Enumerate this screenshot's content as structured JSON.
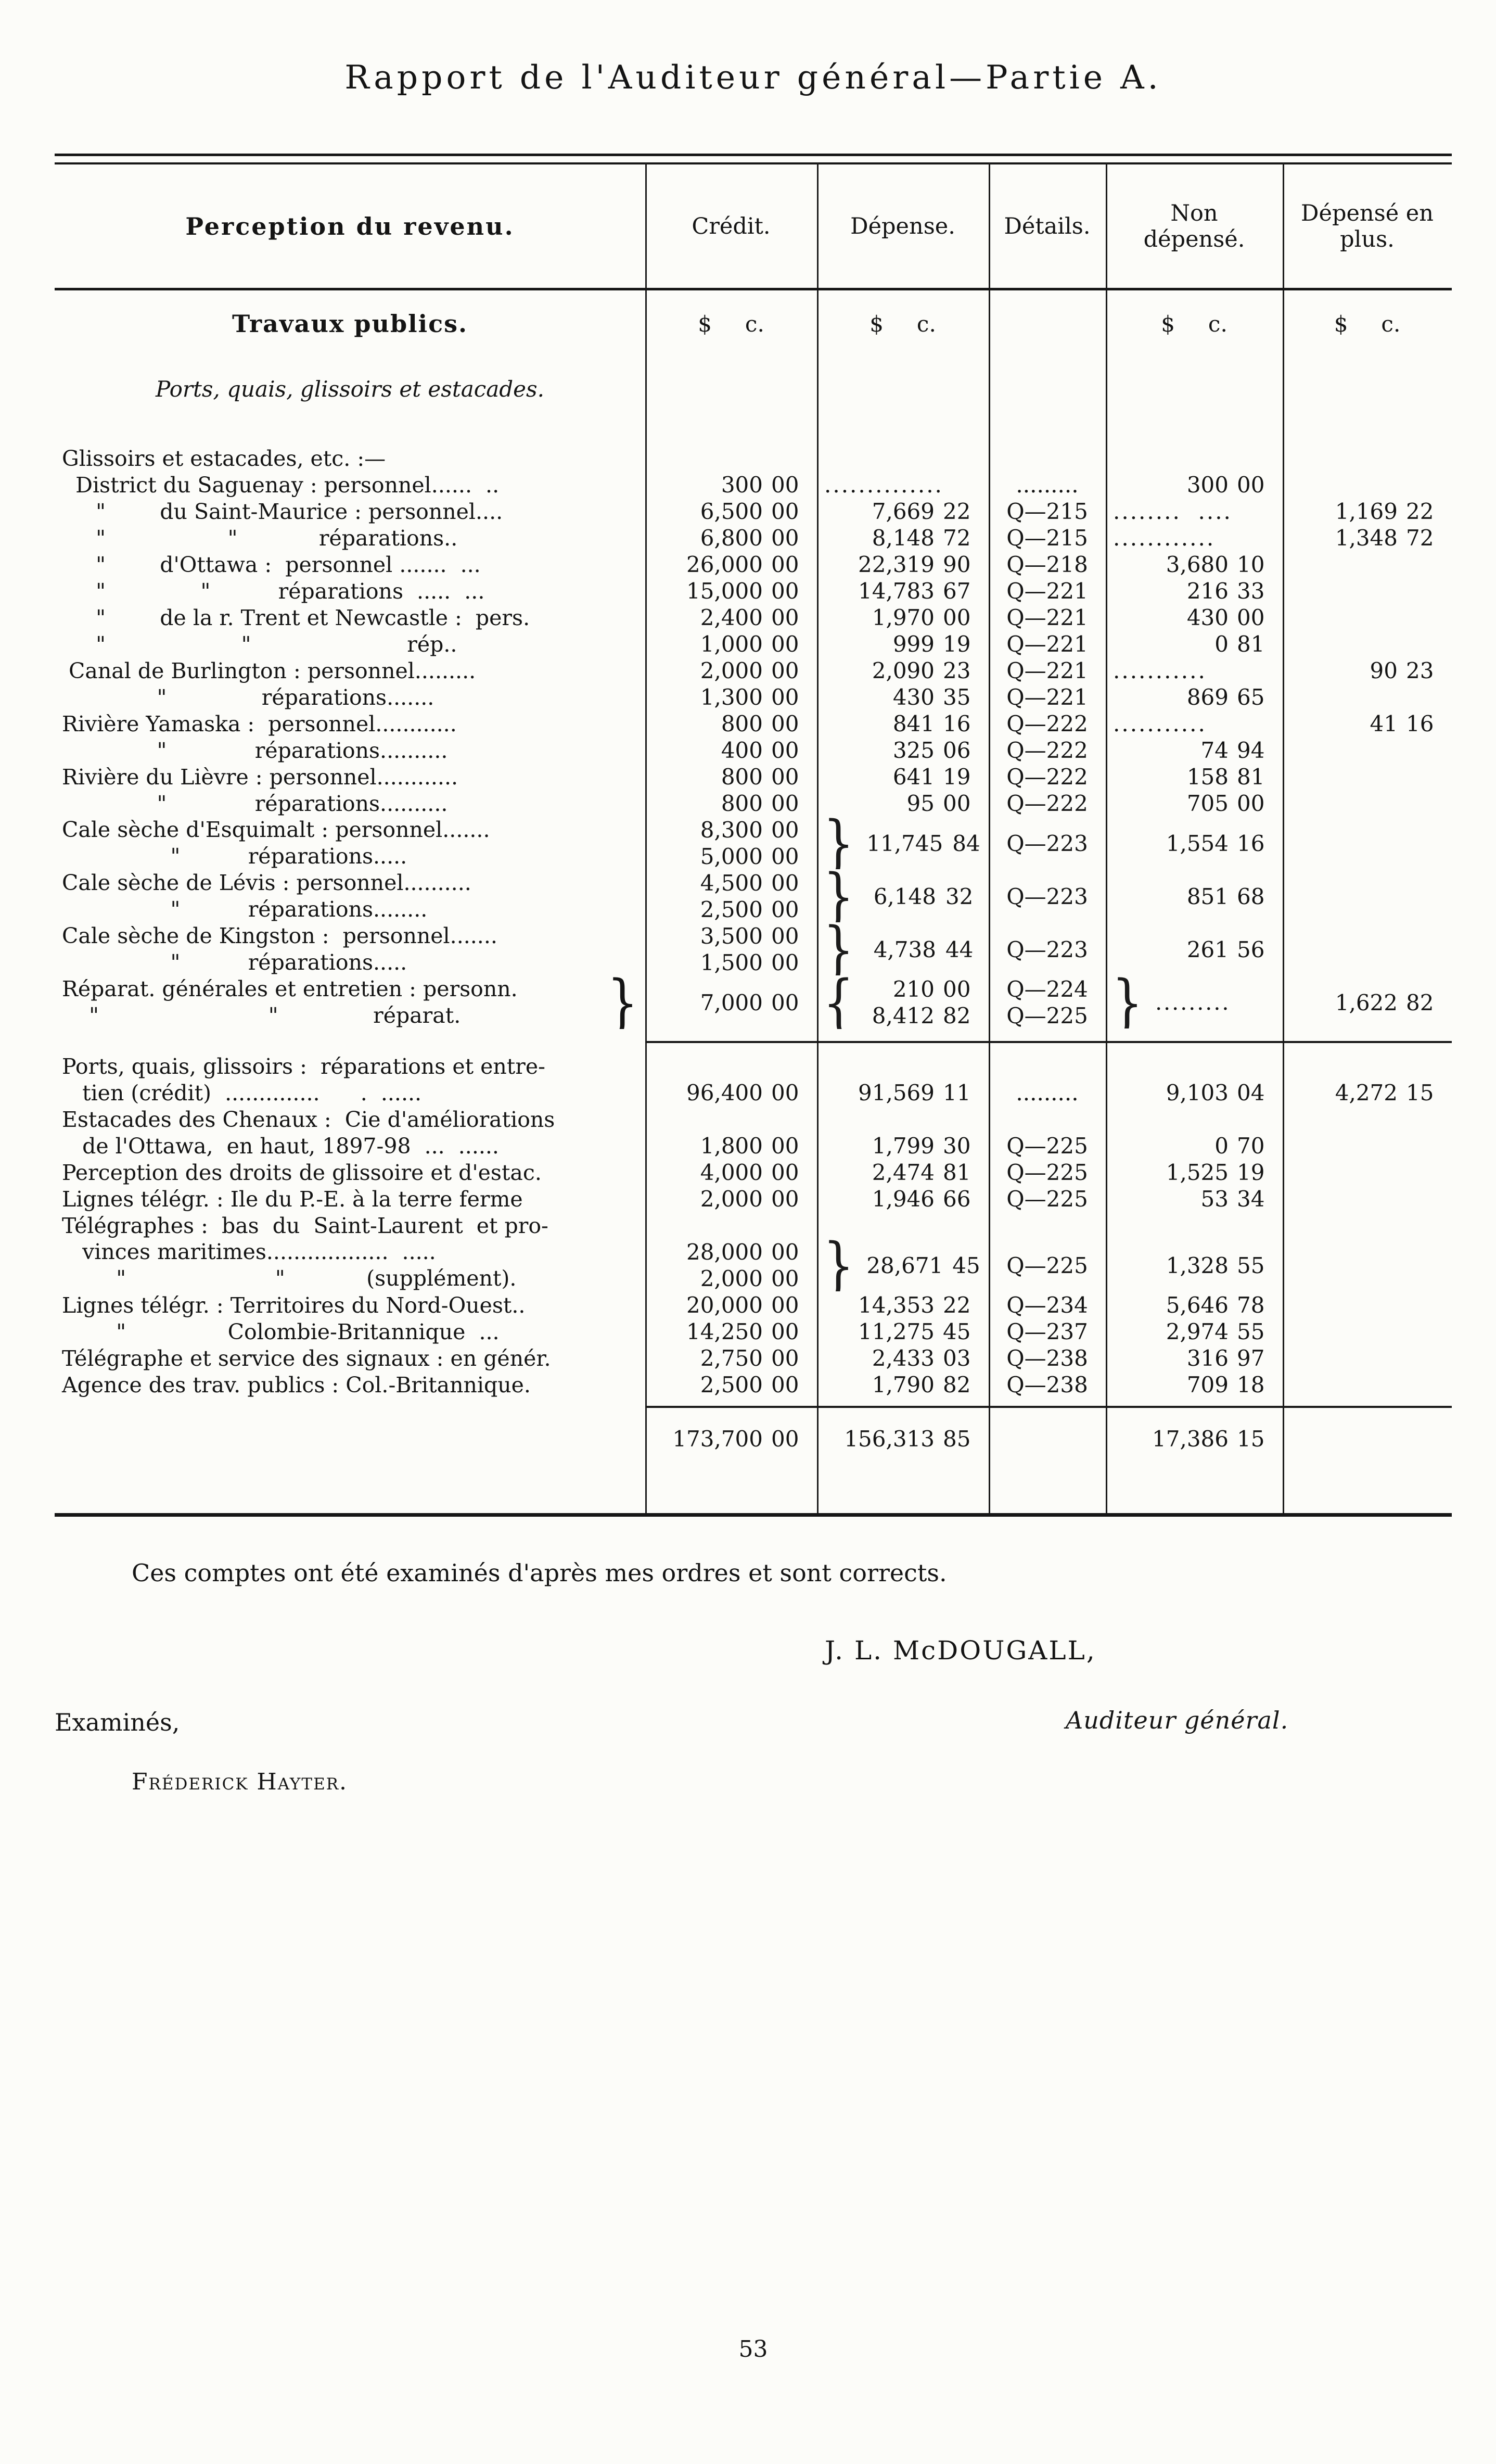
{
  "page": {
    "title": "Rapport de l'Auditeur général—Partie A.",
    "page_number": "53"
  },
  "table": {
    "columns": [
      "Perception du revenu.",
      "Crédit.",
      "Dépense.",
      "Détails.",
      "Non dépensé.",
      "Dépensé en plus."
    ],
    "section_title": "Travaux publics.",
    "subtitle": "Ports, quais, glissoirs et estacades.",
    "currency_dollar": "$",
    "currency_cents": "c.",
    "rows": [
      {
        "type": "plain",
        "label": "Glissoirs et estacades, etc. :—"
      },
      {
        "type": "plain",
        "label": "  District du Saguenay : personnel......  ..",
        "credit": "300 00",
        "depense": "..............",
        "details": ".........",
        "nd": "300 00"
      },
      {
        "type": "plain",
        "label": "     \"        du Saint-Maurice : personnel....",
        "credit": "6,500 00",
        "depense": "7,669 22",
        "details": "Q—215",
        "nd": "........  ....",
        "plus": "1,169 22"
      },
      {
        "type": "plain",
        "label": "     \"                  \"            réparations..",
        "credit": "6,800 00",
        "depense": "8,148 72",
        "details": "Q—215",
        "nd": "............",
        "plus": "1,348 72"
      },
      {
        "type": "plain",
        "label": "     \"        d'Ottawa :  personnel .......  ...",
        "credit": "26,000 00",
        "depense": "22,319 90",
        "details": "Q—218",
        "nd": "3,680 10"
      },
      {
        "type": "plain",
        "label": "     \"              \"          réparations  .....  ...",
        "credit": "15,000 00",
        "depense": "14,783 67",
        "details": "Q—221",
        "nd": "216 33"
      },
      {
        "type": "plain",
        "label": "     \"        de la r. Trent et Newcastle :  pers.",
        "credit": "2,400 00",
        "depense": "1,970 00",
        "details": "Q—221",
        "nd": "430 00"
      },
      {
        "type": "plain",
        "label": "     \"                    \"                       rép..",
        "credit": "1,000 00",
        "depense": "999 19",
        "details": "Q—221",
        "nd": "0 81"
      },
      {
        "type": "plain",
        "label": " Canal de Burlington : personnel.........",
        "credit": "2,000 00",
        "depense": "2,090 23",
        "details": "Q—221",
        "nd": "...........",
        "plus": "90 23"
      },
      {
        "type": "plain",
        "label": "              \"              réparations.......",
        "credit": "1,300 00",
        "depense": "430 35",
        "details": "Q—221",
        "nd": "869 65"
      },
      {
        "type": "plain",
        "label": "Rivière Yamaska :  personnel............",
        "credit": "800 00",
        "depense": "841 16",
        "details": "Q—222",
        "nd": "...........",
        "plus": "41 16"
      },
      {
        "type": "plain",
        "label": "              \"             réparations..........",
        "credit": "400 00",
        "depense": "325 06",
        "details": "Q—222",
        "nd": "74 94"
      },
      {
        "type": "plain",
        "label": "Rivière du Lièvre : personnel............",
        "credit": "800 00",
        "depense": "641 19",
        "details": "Q—222",
        "nd": "158 81"
      },
      {
        "type": "plain",
        "label": "              \"             réparations..........",
        "credit": "800 00",
        "depense": "95 00",
        "details": "Q—222",
        "nd": "705 00"
      },
      {
        "type": "pair",
        "labels": [
          "Cale sèche d'Esquimalt : personnel.......",
          "                \"          réparations....."
        ],
        "credits": [
          "8,300 00",
          "5,000 00"
        ],
        "depense": "11,745 84",
        "details": "Q—223",
        "nd": "1,554 16"
      },
      {
        "type": "pair",
        "labels": [
          "Cale sèche de Lévis : personnel..........",
          "                \"          réparations........"
        ],
        "credits": [
          "4,500 00",
          "2,500 00"
        ],
        "depense": "6,148 32",
        "details": "Q—223",
        "nd": "851 68"
      },
      {
        "type": "pair",
        "labels": [
          "Cale sèche de Kingston :  personnel.......",
          "                \"          réparations....."
        ],
        "credits": [
          "3,500 00",
          "1,500 00"
        ],
        "depense": "4,738 44",
        "details": "Q—223",
        "nd": "261 56"
      },
      {
        "type": "repgen",
        "labels": [
          "Réparat. générales et entretien : personn.",
          "    \"                         \"              réparat."
        ],
        "credit": "7,000 00",
        "depenses": [
          "210 00",
          "8,412 82"
        ],
        "details": [
          "Q—224",
          "Q—225"
        ],
        "nd": ".........",
        "plus": "1,622 82"
      },
      {
        "type": "rule"
      },
      {
        "type": "plain",
        "label": "Ports, quais, glissoirs :  réparations et entre-"
      },
      {
        "type": "plain",
        "label": "   tien (crédit)  ..............      .  ......",
        "credit": "96,400 00",
        "depense": "91,569 11",
        "details": ".........",
        "nd": "9,103 04",
        "plus": "4,272 15"
      },
      {
        "type": "plain",
        "label": "Estacades des Chenaux :  Cie d'améliorations"
      },
      {
        "type": "plain",
        "label": "   de l'Ottawa,  en haut, 1897-98  ...  ......",
        "credit": "1,800 00",
        "depense": "1,799 30",
        "details": "Q—225",
        "nd": "0 70"
      },
      {
        "type": "plain",
        "label": "Perception des droits de glissoire et d'estac.",
        "credit": "4,000 00",
        "depense": "2,474 81",
        "details": "Q—225",
        "nd": "1,525 19"
      },
      {
        "type": "plain",
        "label": "Lignes télégr. : Ile du P.-E. à la terre ferme",
        "credit": "2,000 00",
        "depense": "1,946 66",
        "details": "Q—225",
        "nd": "53 34"
      },
      {
        "type": "plain",
        "label": "Télégraphes :  bas  du  Saint-Laurent  et pro-"
      },
      {
        "type": "pair",
        "labels": [
          "   vinces maritimes..................  .....",
          "        \"                      \"            (supplément)."
        ],
        "credits": [
          "28,000 00",
          "2,000 00"
        ],
        "depense": "28,671 45",
        "details": "Q—225",
        "nd": "1,328 55"
      },
      {
        "type": "plain",
        "label": "Lignes télégr. : Territoires du Nord-Ouest..",
        "credit": "20,000 00",
        "depense": "14,353 22",
        "details": "Q—234",
        "nd": "5,646 78"
      },
      {
        "type": "plain",
        "label": "        \"               Colombie-Britannique  ...",
        "credit": "14,250 00",
        "depense": "11,275 45",
        "details": "Q—237",
        "nd": "2,974 55"
      },
      {
        "type": "plain",
        "label": "Télégraphe et service des signaux : en génér.",
        "credit": "2,750 00",
        "depense": "2,433 03",
        "details": "Q—238",
        "nd": "316 97"
      },
      {
        "type": "plain",
        "label": "Agence des trav. publics : Col.-Britannique.",
        "credit": "2,500 00",
        "depense": "1,790 82",
        "details": "Q—238",
        "nd": "709 18"
      }
    ],
    "totals": {
      "credit": "173,700 00",
      "depense": "156,313 85",
      "non_depense": "17,386 15"
    }
  },
  "footer": {
    "attestation": "Ces comptes ont été examinés d'après mes ordres et sont corrects.",
    "signature": "J. L. McDOUGALL,",
    "signature_title": "Auditeur général.",
    "examined": "Examinés,",
    "examiner": "Fréderick Hayter."
  }
}
